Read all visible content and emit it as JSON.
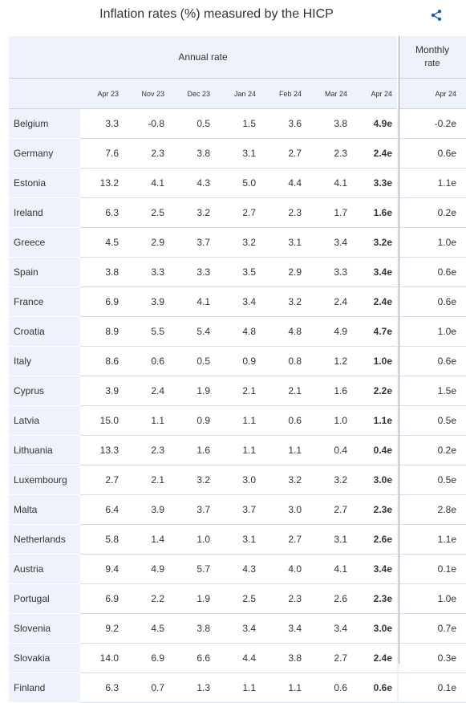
{
  "title": "Inflation rates (%) measured by the HICP",
  "share_icon": "share-icon",
  "header": {
    "annual_label": "Annual rate",
    "monthly_label_1": "Monthly",
    "monthly_label_2": "rate",
    "annual_dates": [
      "Apr 23",
      "Nov 23",
      "Dec 23",
      "Jan 24",
      "Feb 24",
      "Mar 24",
      "Apr 24"
    ],
    "monthly_date": "Apr 24"
  },
  "rows": [
    {
      "country": "Belgium",
      "values": [
        "3.3",
        "-0.8",
        "0.5",
        "1.5",
        "3.6",
        "3.8",
        "4.9e"
      ],
      "monthly": "-0.2e"
    },
    {
      "country": "Germany",
      "values": [
        "7.6",
        "2.3",
        "3.8",
        "3.1",
        "2.7",
        "2.3",
        "2.4e"
      ],
      "monthly": "0.6e"
    },
    {
      "country": "Estonia",
      "values": [
        "13.2",
        "4.1",
        "4.3",
        "5.0",
        "4.4",
        "4.1",
        "3.3e"
      ],
      "monthly": "1.1e"
    },
    {
      "country": "Ireland",
      "values": [
        "6.3",
        "2.5",
        "3.2",
        "2.7",
        "2.3",
        "1.7",
        "1.6e"
      ],
      "monthly": "0.2e"
    },
    {
      "country": "Greece",
      "values": [
        "4.5",
        "2.9",
        "3.7",
        "3.2",
        "3.1",
        "3.4",
        "3.2e"
      ],
      "monthly": "1.0e"
    },
    {
      "country": "Spain",
      "values": [
        "3.8",
        "3.3",
        "3.3",
        "3.5",
        "2.9",
        "3.3",
        "3.4e"
      ],
      "monthly": "0.6e"
    },
    {
      "country": "France",
      "values": [
        "6.9",
        "3.9",
        "4.1",
        "3.4",
        "3.2",
        "2.4",
        "2.4e"
      ],
      "monthly": "0.6e"
    },
    {
      "country": "Croatia",
      "values": [
        "8.9",
        "5.5",
        "5.4",
        "4.8",
        "4.8",
        "4.9",
        "4.7e"
      ],
      "monthly": "1.0e"
    },
    {
      "country": "Italy",
      "values": [
        "8.6",
        "0.6",
        "0.5",
        "0.9",
        "0.8",
        "1.2",
        "1.0e"
      ],
      "monthly": "0.6e"
    },
    {
      "country": "Cyprus",
      "values": [
        "3.9",
        "2.4",
        "1.9",
        "2.1",
        "2.1",
        "1.6",
        "2.2e"
      ],
      "monthly": "1.5e"
    },
    {
      "country": "Latvia",
      "values": [
        "15.0",
        "1.1",
        "0.9",
        "1.1",
        "0.6",
        "1.0",
        "1.1e"
      ],
      "monthly": "0.5e"
    },
    {
      "country": "Lithuania",
      "values": [
        "13.3",
        "2.3",
        "1.6",
        "1.1",
        "1.1",
        "0.4",
        "0.4e"
      ],
      "monthly": "0.2e"
    },
    {
      "country": "Luxembourg",
      "values": [
        "2.7",
        "2.1",
        "3.2",
        "3.0",
        "3.2",
        "3.2",
        "3.0e"
      ],
      "monthly": "0.5e"
    },
    {
      "country": "Malta",
      "values": [
        "6.4",
        "3.9",
        "3.7",
        "3.7",
        "3.0",
        "2.7",
        "2.3e"
      ],
      "monthly": "2.8e"
    },
    {
      "country": "Netherlands",
      "values": [
        "5.8",
        "1.4",
        "1.0",
        "3.1",
        "2.7",
        "3.1",
        "2.6e"
      ],
      "monthly": "1.1e"
    },
    {
      "country": "Austria",
      "values": [
        "9.4",
        "4.9",
        "5.7",
        "4.3",
        "4.0",
        "4.1",
        "3.4e"
      ],
      "monthly": "0.1e"
    },
    {
      "country": "Portugal",
      "values": [
        "6.9",
        "2.2",
        "1.9",
        "2.5",
        "2.3",
        "2.6",
        "2.3e"
      ],
      "monthly": "1.0e"
    },
    {
      "country": "Slovenia",
      "values": [
        "9.2",
        "4.5",
        "3.8",
        "3.4",
        "3.4",
        "3.4",
        "3.0e"
      ],
      "monthly": "0.7e"
    },
    {
      "country": "Slovakia",
      "values": [
        "14.0",
        "6.9",
        "6.6",
        "4.4",
        "3.8",
        "2.7",
        "2.4e"
      ],
      "monthly": "0.3e"
    },
    {
      "country": "Finland",
      "values": [
        "6.3",
        "0.7",
        "1.3",
        "1.1",
        "1.1",
        "0.6",
        "0.6e"
      ],
      "monthly": "0.1e"
    }
  ],
  "colors": {
    "header_bg": "#eef3fb",
    "accent": "#1a5bb5",
    "separator": "#8aa2c2"
  }
}
